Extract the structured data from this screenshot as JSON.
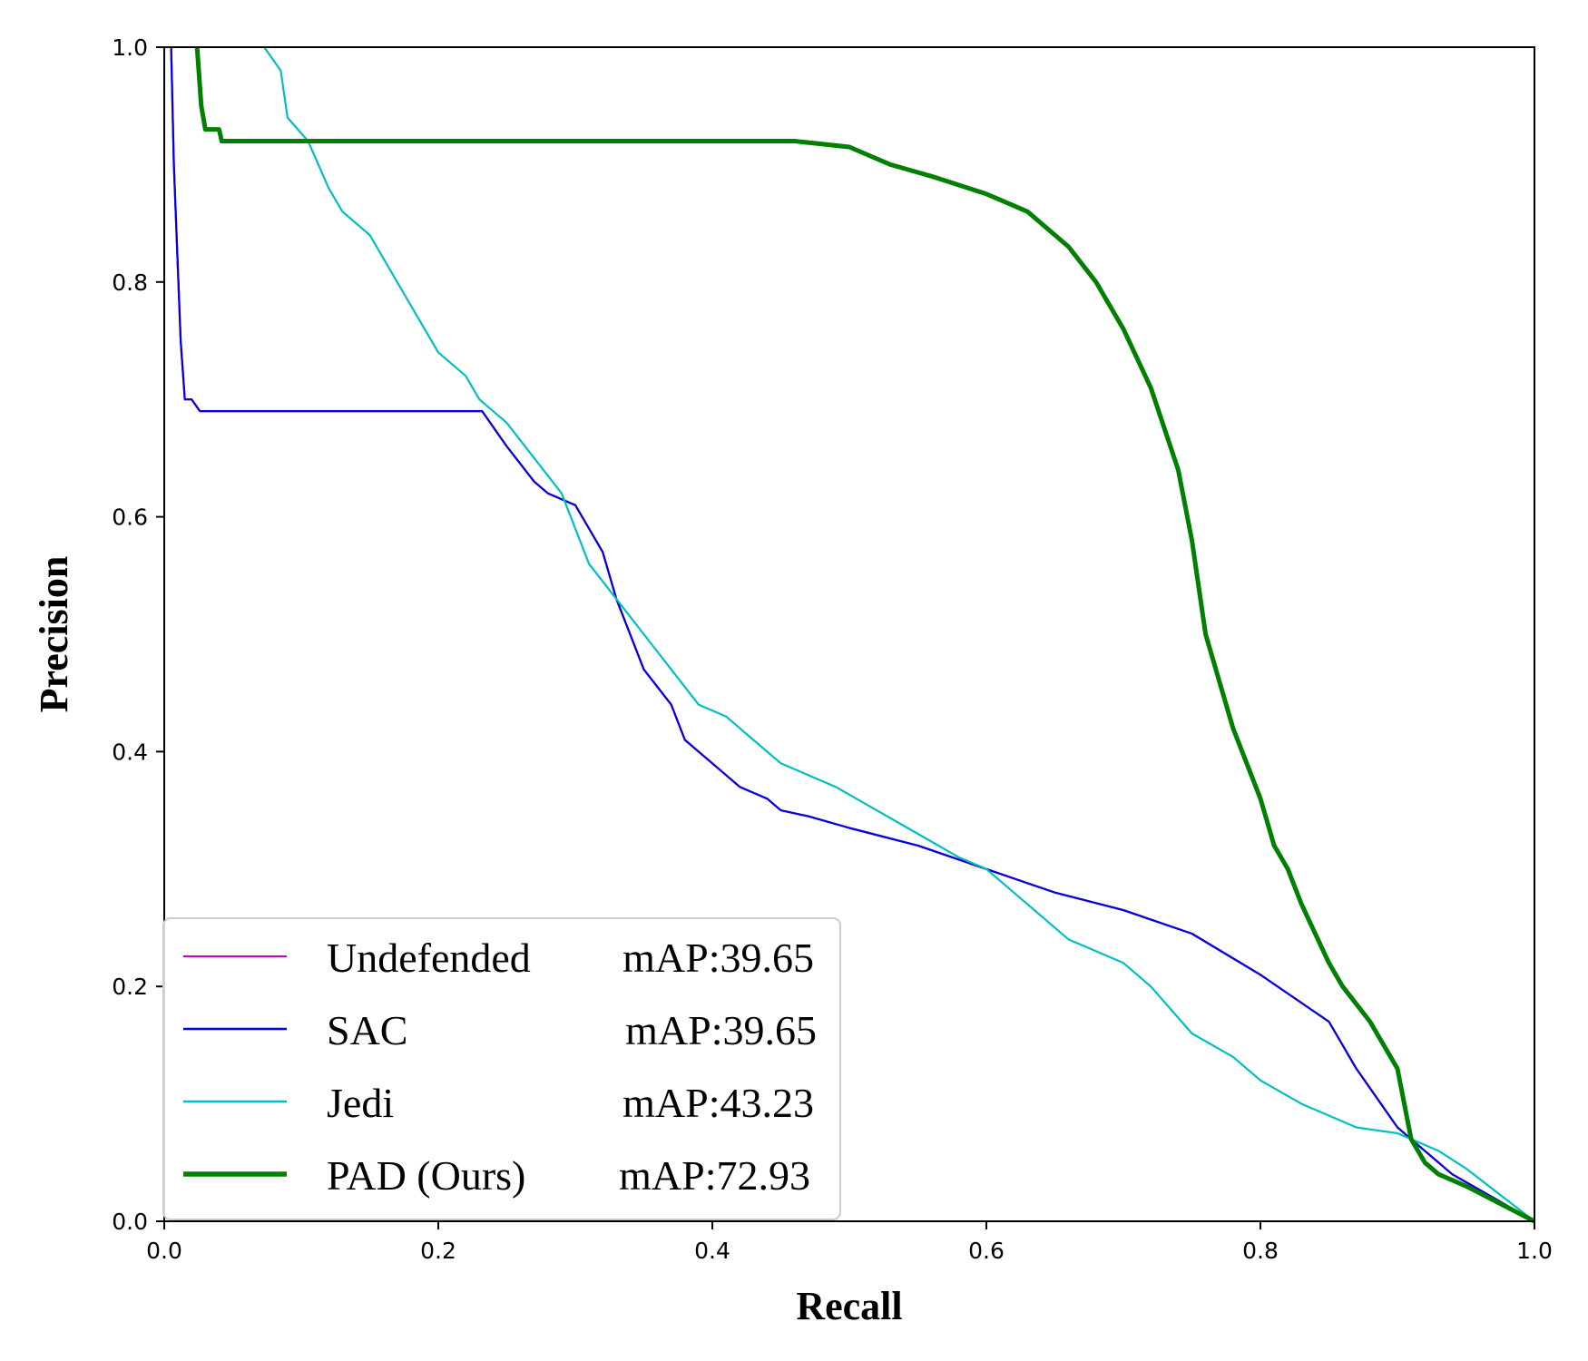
{
  "chart_data": {
    "type": "line",
    "title": "",
    "xlabel": "Recall",
    "ylabel": "Precision",
    "xlim": [
      0.0,
      1.0
    ],
    "ylim": [
      0.0,
      1.0
    ],
    "grid": false,
    "legend_position": "bottom-left",
    "xticks": [
      "0.0",
      "0.2",
      "0.4",
      "0.6",
      "0.8",
      "1.0"
    ],
    "yticks": [
      "0.0",
      "0.2",
      "0.4",
      "0.6",
      "0.8",
      "1.0"
    ],
    "series": [
      {
        "name": "Undefended",
        "map_label": "mAP:39.65",
        "color": "#bf00bf",
        "line_width": "thin",
        "x": [
          0.005,
          0.007,
          0.009,
          0.012,
          0.015,
          0.02,
          0.026,
          0.1,
          0.2,
          0.232,
          0.25,
          0.27,
          0.28,
          0.3,
          0.31,
          0.32,
          0.33,
          0.34,
          0.35,
          0.37,
          0.38,
          0.4,
          0.42,
          0.44,
          0.45,
          0.47,
          0.5,
          0.55,
          0.6,
          0.65,
          0.7,
          0.75,
          0.8,
          0.85,
          0.87,
          0.9,
          0.92,
          0.94,
          1.0
        ],
        "y": [
          1.0,
          0.9,
          0.84,
          0.75,
          0.7,
          0.7,
          0.69,
          0.69,
          0.69,
          0.69,
          0.66,
          0.63,
          0.62,
          0.61,
          0.59,
          0.57,
          0.53,
          0.5,
          0.47,
          0.44,
          0.41,
          0.39,
          0.37,
          0.36,
          0.35,
          0.345,
          0.335,
          0.32,
          0.3,
          0.28,
          0.265,
          0.245,
          0.21,
          0.17,
          0.13,
          0.08,
          0.06,
          0.04,
          0.0
        ]
      },
      {
        "name": "SAC",
        "map_label": "mAP:39.65",
        "color": "#0000e0",
        "line_width": "thin",
        "x": [
          0.005,
          0.007,
          0.009,
          0.012,
          0.015,
          0.02,
          0.026,
          0.1,
          0.2,
          0.232,
          0.25,
          0.27,
          0.28,
          0.3,
          0.31,
          0.32,
          0.33,
          0.34,
          0.35,
          0.37,
          0.38,
          0.4,
          0.42,
          0.44,
          0.45,
          0.47,
          0.5,
          0.55,
          0.6,
          0.65,
          0.7,
          0.75,
          0.8,
          0.85,
          0.87,
          0.9,
          0.92,
          0.94,
          1.0
        ],
        "y": [
          1.0,
          0.9,
          0.84,
          0.75,
          0.7,
          0.7,
          0.69,
          0.69,
          0.69,
          0.69,
          0.66,
          0.63,
          0.62,
          0.61,
          0.59,
          0.57,
          0.53,
          0.5,
          0.47,
          0.44,
          0.41,
          0.39,
          0.37,
          0.36,
          0.35,
          0.345,
          0.335,
          0.32,
          0.3,
          0.28,
          0.265,
          0.245,
          0.21,
          0.17,
          0.13,
          0.08,
          0.06,
          0.04,
          0.0
        ]
      },
      {
        "name": "Jedi",
        "map_label": "mAP:43.23",
        "color": "#00bfbf",
        "line_width": "thin",
        "x": [
          0.073,
          0.085,
          0.09,
          0.105,
          0.12,
          0.13,
          0.15,
          0.17,
          0.2,
          0.22,
          0.23,
          0.25,
          0.27,
          0.29,
          0.3,
          0.31,
          0.33,
          0.35,
          0.37,
          0.39,
          0.41,
          0.43,
          0.45,
          0.49,
          0.52,
          0.55,
          0.58,
          0.6,
          0.63,
          0.66,
          0.7,
          0.72,
          0.75,
          0.78,
          0.8,
          0.83,
          0.87,
          0.9,
          0.93,
          0.95,
          1.0
        ],
        "y": [
          1.0,
          0.98,
          0.94,
          0.92,
          0.88,
          0.86,
          0.84,
          0.8,
          0.74,
          0.72,
          0.7,
          0.68,
          0.65,
          0.62,
          0.59,
          0.56,
          0.53,
          0.5,
          0.47,
          0.44,
          0.43,
          0.41,
          0.39,
          0.37,
          0.35,
          0.33,
          0.31,
          0.3,
          0.27,
          0.24,
          0.22,
          0.2,
          0.16,
          0.14,
          0.12,
          0.1,
          0.08,
          0.075,
          0.06,
          0.045,
          0.0
        ]
      },
      {
        "name": "PAD (Ours)",
        "map_label": "mAP:72.93",
        "color": "#008000",
        "line_width": "thick",
        "x": [
          0.024,
          0.027,
          0.03,
          0.04,
          0.042,
          0.46,
          0.5,
          0.53,
          0.56,
          0.6,
          0.63,
          0.66,
          0.68,
          0.7,
          0.72,
          0.74,
          0.75,
          0.76,
          0.77,
          0.78,
          0.79,
          0.8,
          0.81,
          0.82,
          0.83,
          0.85,
          0.86,
          0.88,
          0.9,
          0.91,
          0.92,
          0.925,
          0.93,
          0.95,
          1.0
        ],
        "y": [
          1.0,
          0.95,
          0.93,
          0.93,
          0.92,
          0.92,
          0.915,
          0.9,
          0.89,
          0.875,
          0.86,
          0.83,
          0.8,
          0.76,
          0.71,
          0.64,
          0.58,
          0.5,
          0.46,
          0.42,
          0.39,
          0.36,
          0.32,
          0.3,
          0.27,
          0.22,
          0.2,
          0.17,
          0.13,
          0.07,
          0.05,
          0.045,
          0.04,
          0.03,
          0.0
        ]
      }
    ]
  }
}
